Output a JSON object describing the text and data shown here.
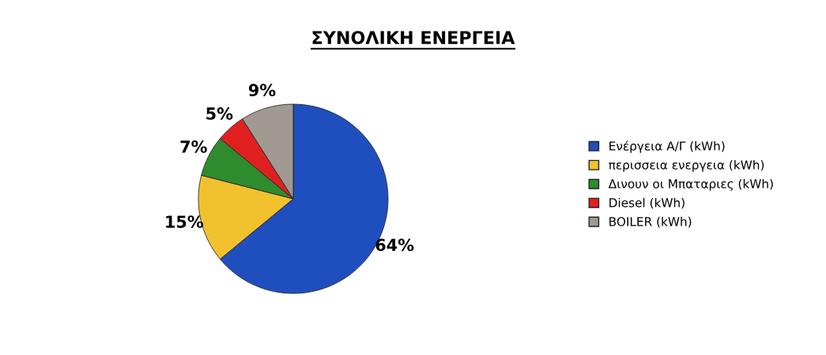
{
  "chart_data": {
    "type": "pie",
    "title": "ΣΥΝΟΛΙΚΗ ΕΝΕΡΓΕΙΑ",
    "categories": [
      "Ενέργεια Α/Γ (kWh)",
      "περισσεια ενεργεια (kWh)",
      "Δινουν οι Μπαταριες (kWh)",
      "Diesel (kWh)",
      "BOILER (kWh)"
    ],
    "values": [
      64,
      15,
      7,
      5,
      9
    ],
    "value_labels": [
      "64%",
      "15%",
      "7%",
      "5%",
      "9%"
    ],
    "colors": [
      "#1f4fbf",
      "#f2c12e",
      "#2e8b2e",
      "#e02020",
      "#a09a92"
    ],
    "legend": "right"
  }
}
